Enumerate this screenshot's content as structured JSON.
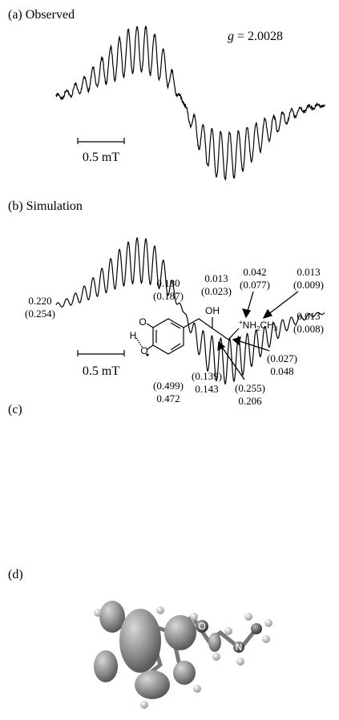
{
  "panel_a": {
    "label": "(a) Observed",
    "g_symbol": "g",
    "g_value": "= 2.0028",
    "scale": "0.5 mT"
  },
  "panel_b": {
    "label": "(b) Simulation",
    "scale": "0.5 mT"
  },
  "panel_c": {
    "label": "(c)",
    "atoms": {
      "oh": "OH",
      "h": "H",
      "o_top": "O",
      "o_bottom": "O",
      "amine": {
        "charge": "+",
        "nh": "NH",
        "nh_sub": "2",
        "ch": "CH",
        "ch_sub": "3"
      }
    },
    "values": {
      "hbond_h": [
        "0.220",
        "(0.254)"
      ],
      "ring_top": [
        "0.180",
        "(0.187)"
      ],
      "oh_h": [
        "0.013",
        "(0.023)"
      ],
      "nh_h": [
        "0.042",
        "(0.077)"
      ],
      "ch3_h": [
        "0.013",
        "(0.009)"
      ],
      "n": [
        "0.013",
        "(0.008)"
      ],
      "ch2_a": [
        "(0.027)",
        "0.048"
      ],
      "ch": [
        "(0.139)",
        "0.143"
      ],
      "ch2_b": [
        "(0.255)",
        "0.206"
      ],
      "ring_bottom": [
        "(0.499)",
        "0.472"
      ]
    }
  },
  "panel_d": {
    "label": "(d)",
    "atom_o": "O",
    "atom_n": "N"
  }
}
